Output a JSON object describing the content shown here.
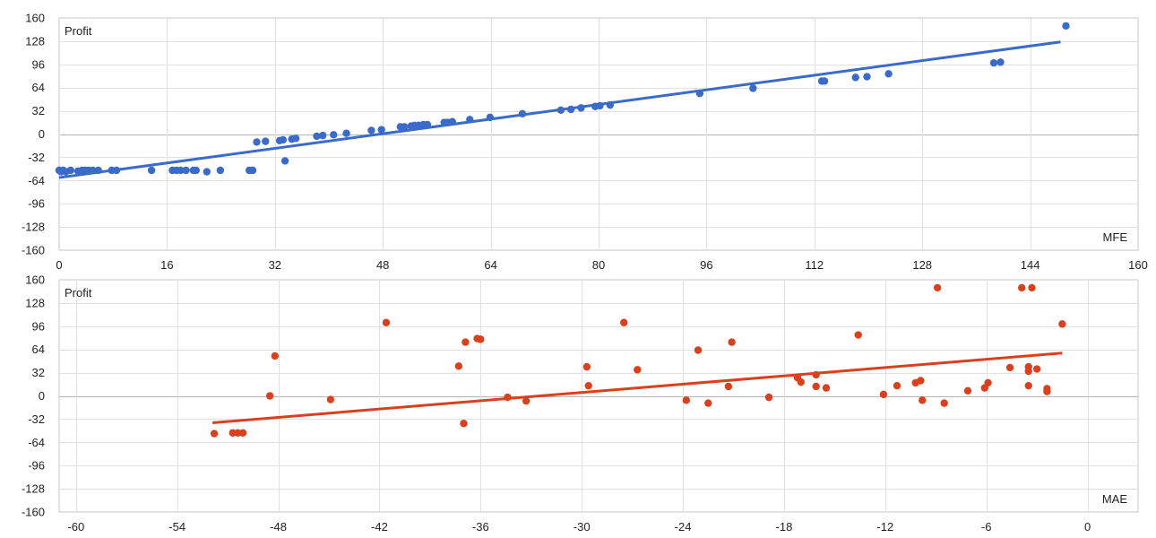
{
  "chart_data": [
    {
      "type": "scatter",
      "title": "",
      "ylabel": "Profit",
      "xlabel": "MFE",
      "xlim": [
        0,
        160
      ],
      "ylim": [
        -160,
        160
      ],
      "xticks": [
        0,
        16,
        32,
        48,
        64,
        80,
        96,
        112,
        128,
        144,
        160
      ],
      "yticks": [
        160,
        128,
        96,
        64,
        32,
        0,
        -32,
        -64,
        -96,
        -128,
        -160
      ],
      "grid": true,
      "legend": "none",
      "color": "#3a6bc9",
      "trendline": {
        "x": [
          0,
          148.5
        ],
        "y": [
          -60,
          127
        ]
      },
      "points": [
        [
          0,
          -50
        ],
        [
          0.3,
          -52
        ],
        [
          0.6,
          -50
        ],
        [
          1,
          -52
        ],
        [
          1.7,
          -50
        ],
        [
          2.8,
          -51
        ],
        [
          3.4,
          -50
        ],
        [
          3.9,
          -50
        ],
        [
          4.4,
          -50
        ],
        [
          5,
          -50
        ],
        [
          5.8,
          -50
        ],
        [
          7.8,
          -50
        ],
        [
          8.5,
          -50
        ],
        [
          13.7,
          -50
        ],
        [
          16.8,
          -50
        ],
        [
          17.4,
          -50
        ],
        [
          18,
          -50
        ],
        [
          18.8,
          -50
        ],
        [
          19.9,
          -50
        ],
        [
          20.3,
          -50
        ],
        [
          21.9,
          -52
        ],
        [
          23.9,
          -50
        ],
        [
          28.2,
          -50
        ],
        [
          28.7,
          -50
        ],
        [
          29.3,
          -11
        ],
        [
          30.6,
          -10
        ],
        [
          32.7,
          -9
        ],
        [
          33.2,
          -8
        ],
        [
          33.5,
          -37
        ],
        [
          34.5,
          -7
        ],
        [
          35.1,
          -6
        ],
        [
          38.2,
          -3
        ],
        [
          39.1,
          -2
        ],
        [
          40.7,
          -1
        ],
        [
          42.6,
          1
        ],
        [
          46.3,
          5
        ],
        [
          47.8,
          6
        ],
        [
          50.6,
          10
        ],
        [
          51.2,
          10
        ],
        [
          52.2,
          11
        ],
        [
          52.7,
          12
        ],
        [
          53.3,
          12
        ],
        [
          54,
          13
        ],
        [
          54.6,
          13
        ],
        [
          57.1,
          16
        ],
        [
          57.6,
          16
        ],
        [
          58.3,
          17
        ],
        [
          60.9,
          20
        ],
        [
          63.9,
          23
        ],
        [
          68.7,
          28
        ],
        [
          74.4,
          33
        ],
        [
          75.9,
          34
        ],
        [
          77.4,
          36
        ],
        [
          79.5,
          38
        ],
        [
          80.2,
          39
        ],
        [
          81.7,
          40
        ],
        [
          95,
          56
        ],
        [
          102.9,
          63
        ],
        [
          113.1,
          73
        ],
        [
          113.5,
          73
        ],
        [
          118.1,
          78
        ],
        [
          119.8,
          79
        ],
        [
          123,
          83
        ],
        [
          138.6,
          98
        ],
        [
          139.6,
          99
        ],
        [
          149.3,
          149
        ]
      ]
    },
    {
      "type": "scatter",
      "title": "",
      "ylabel": "Profit",
      "xlabel": "MAE",
      "xlim": [
        -61,
        3
      ],
      "ylim": [
        -160,
        160
      ],
      "xticks": [
        -60,
        -54,
        -48,
        -42,
        -36,
        -30,
        -24,
        -18,
        -12,
        -6,
        0
      ],
      "yticks": [
        160,
        128,
        96,
        64,
        32,
        0,
        -32,
        -64,
        -96,
        -128,
        -160
      ],
      "grid": true,
      "legend": "none",
      "color": "#d9411e",
      "trendline": {
        "x": [
          -51.9,
          -1.5
        ],
        "y": [
          -37,
          59
        ]
      },
      "points": [
        [
          -51.8,
          -52
        ],
        [
          -50.7,
          -51
        ],
        [
          -50.4,
          -51
        ],
        [
          -50.1,
          -51
        ],
        [
          -48.5,
          0
        ],
        [
          -48.2,
          55
        ],
        [
          -44.9,
          -5
        ],
        [
          -41.6,
          101
        ],
        [
          -37.3,
          41
        ],
        [
          -37,
          -38
        ],
        [
          -36.9,
          74
        ],
        [
          -36.2,
          79
        ],
        [
          -36,
          78
        ],
        [
          -34.4,
          -2
        ],
        [
          -33.3,
          -7
        ],
        [
          -29.7,
          40
        ],
        [
          -29.6,
          14
        ],
        [
          -27.5,
          101
        ],
        [
          -26.7,
          36
        ],
        [
          -23.8,
          -6
        ],
        [
          -23.1,
          63
        ],
        [
          -22.5,
          -10
        ],
        [
          -21.3,
          13
        ],
        [
          -21.1,
          74
        ],
        [
          -18.9,
          -2
        ],
        [
          -17.2,
          25
        ],
        [
          -17,
          19
        ],
        [
          -16.1,
          29
        ],
        [
          -16.1,
          13
        ],
        [
          -15.5,
          11
        ],
        [
          -13.6,
          84
        ],
        [
          -12.1,
          2
        ],
        [
          -11.3,
          14
        ],
        [
          -10.2,
          18
        ],
        [
          -9.9,
          21
        ],
        [
          -9.8,
          -6
        ],
        [
          -8.9,
          149
        ],
        [
          -8.5,
          -10
        ],
        [
          -7.1,
          7
        ],
        [
          -6.1,
          11
        ],
        [
          -5.9,
          18
        ],
        [
          -4.6,
          39
        ],
        [
          -3.9,
          149
        ],
        [
          -3.5,
          34
        ],
        [
          -3.5,
          40
        ],
        [
          -3.5,
          14
        ],
        [
          -3.3,
          149
        ],
        [
          -3,
          37
        ],
        [
          -2.4,
          6
        ],
        [
          -2.4,
          10
        ],
        [
          -1.5,
          99
        ]
      ]
    }
  ]
}
